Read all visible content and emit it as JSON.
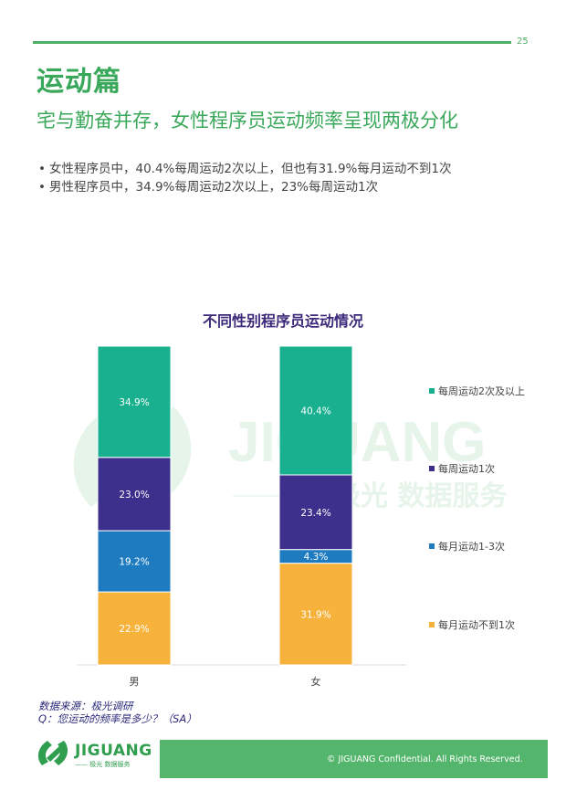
{
  "page": {
    "number": "25",
    "section_title": "运动篇",
    "subtitle": "宅与勤奋并存，女性程序员运动频率呈现两极分化",
    "bullets": [
      "女性程序员中，40.4%每周运动2次以上，但也有31.9%每月运动不到1次",
      "男性程序员中，34.9%每周运动2次以上，23%每周运动1次"
    ]
  },
  "watermark": {
    "brand": "JIGUANG",
    "tagline": "极光 数据服务"
  },
  "chart_data": {
    "type": "bar",
    "stacked": true,
    "title": "不同性别程序员运动情况",
    "categories": [
      "男",
      "女"
    ],
    "series": [
      {
        "name": "每月运动不到1次",
        "values": [
          22.9,
          31.9
        ],
        "color": "#f7b23b"
      },
      {
        "name": "每月运动1-3次",
        "values": [
          19.2,
          4.3
        ],
        "color": "#1f7bc0"
      },
      {
        "name": "每周运动1次",
        "values": [
          23.0,
          23.4
        ],
        "color": "#3d2f8c"
      },
      {
        "name": "每周运动2次及以上",
        "values": [
          34.9,
          40.4
        ],
        "color": "#18b08f"
      }
    ],
    "data_labels": [
      [
        "22.9%",
        "31.9%"
      ],
      [
        "19.2%",
        "4.3%"
      ],
      [
        "23.0%",
        "23.4%"
      ],
      [
        "34.9%",
        "40.4%"
      ]
    ],
    "legend_order": [
      "每周运动2次及以上",
      "每周运动1次",
      "每月运动1-3次",
      "每月运动不到1次"
    ],
    "ylim": [
      0,
      100
    ],
    "grid": false,
    "legend_position": "right"
  },
  "source": {
    "line1": "数据来源：极光调研",
    "line2": "Q：您运动的频率是多少？（SA）"
  },
  "footer": {
    "logo_name": "JIGUANG",
    "logo_tagline": "—— 极光 数据服务",
    "copyright": "© JIGUANG Confidential. All Rights Reserved."
  }
}
